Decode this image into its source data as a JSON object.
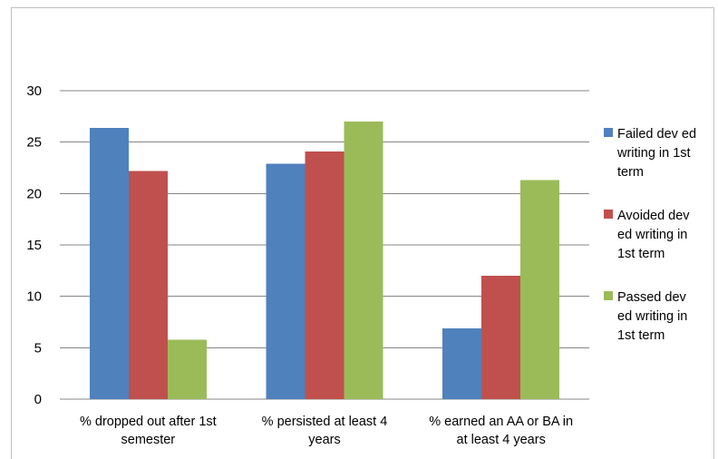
{
  "chart_data": {
    "type": "bar",
    "title": "",
    "xlabel": "",
    "ylabel": "",
    "categories": [
      [
        "% dropped out after 1st",
        "semester"
      ],
      [
        "% persisted at least 4",
        "years"
      ],
      [
        "% earned an AA or BA in",
        "at least 4 years"
      ]
    ],
    "series": [
      {
        "name": [
          "Failed dev ed",
          "writing in 1st",
          "term"
        ],
        "color": "#4f81bd",
        "values": [
          26.4,
          22.9,
          6.9
        ]
      },
      {
        "name": [
          "Avoided dev",
          "ed writing in",
          "1st term"
        ],
        "color": "#c0504d",
        "values": [
          22.2,
          24.1,
          12.0
        ]
      },
      {
        "name": [
          "Passed dev",
          "ed writing in",
          "1st term"
        ],
        "color": "#9bbb59",
        "values": [
          5.8,
          27.0,
          21.3
        ]
      }
    ],
    "ylim": [
      0,
      30
    ],
    "yticks": [
      0,
      5,
      10,
      15,
      20,
      25,
      30
    ],
    "grid": true,
    "legend_position": "right"
  }
}
